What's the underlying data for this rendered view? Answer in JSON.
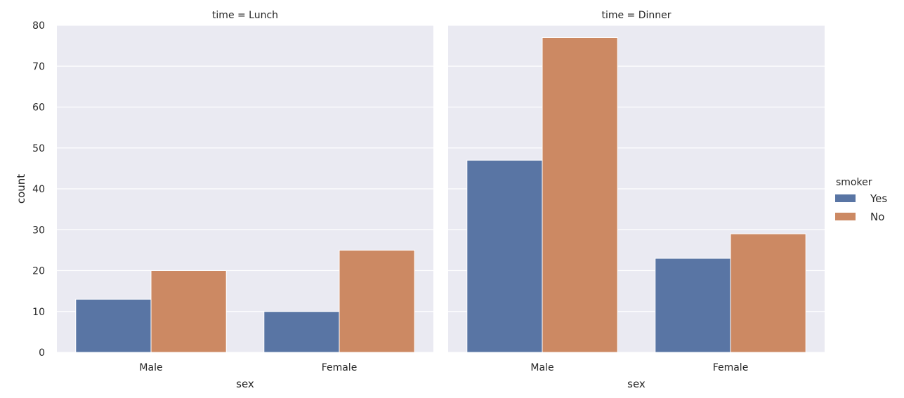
{
  "chart_data": {
    "type": "bar",
    "grid": true,
    "ylabel": "count",
    "ylim": [
      0,
      80
    ],
    "yticks": [
      0,
      10,
      20,
      30,
      40,
      50,
      60,
      70,
      80
    ],
    "legend": {
      "title": "smoker",
      "position": "right",
      "entries": [
        {
          "name": "Yes",
          "color": "#5975a4"
        },
        {
          "name": "No",
          "color": "#cc8963"
        }
      ]
    },
    "colors": {
      "background": "#eaeaf2",
      "grid": "#ffffff",
      "Yes": "#5975a4",
      "No": "#cc8963"
    },
    "facets": [
      {
        "title": "time = Lunch",
        "xlabel": "sex",
        "categories": [
          "Male",
          "Female"
        ],
        "series": [
          {
            "name": "Yes",
            "values": [
              13,
              10
            ]
          },
          {
            "name": "No",
            "values": [
              20,
              25
            ]
          }
        ]
      },
      {
        "title": "time = Dinner",
        "xlabel": "sex",
        "categories": [
          "Male",
          "Female"
        ],
        "series": [
          {
            "name": "Yes",
            "values": [
              47,
              23
            ]
          },
          {
            "name": "No",
            "values": [
              77,
              29
            ]
          }
        ]
      }
    ]
  }
}
